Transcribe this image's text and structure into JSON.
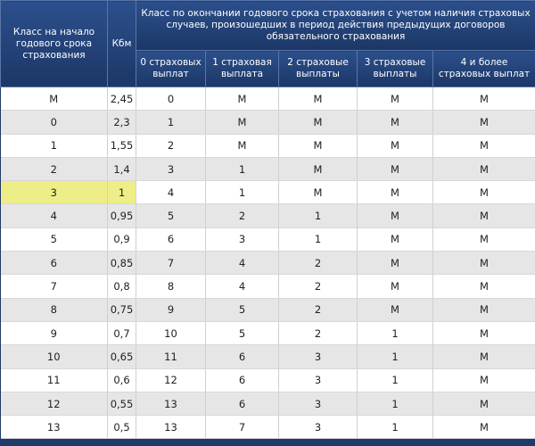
{
  "header": {
    "class_start": "Класс на начало годового срока страхования",
    "kbm": "Кбм",
    "class_end": "Класс по окончании годового срока страхования с учетом наличия страховых случаев, произошедших в период действия предыдущих договоров обязательного страхования",
    "columns": [
      "0 страховых выплат",
      "1 страховая выплата",
      "2 страховые выплаты",
      "3 страховые выплаты",
      "4 и более страховых выплат"
    ]
  },
  "table": {
    "rows": [
      [
        "M",
        "2,45",
        "0",
        "M",
        "M",
        "M",
        "M"
      ],
      [
        "0",
        "2,3",
        "1",
        "M",
        "M",
        "M",
        "M"
      ],
      [
        "1",
        "1,55",
        "2",
        "M",
        "M",
        "M",
        "M"
      ],
      [
        "2",
        "1,4",
        "3",
        "1",
        "M",
        "M",
        "M"
      ],
      [
        "3",
        "1",
        "4",
        "1",
        "M",
        "M",
        "M"
      ],
      [
        "4",
        "0,95",
        "5",
        "2",
        "1",
        "M",
        "M"
      ],
      [
        "5",
        "0,9",
        "6",
        "3",
        "1",
        "M",
        "M"
      ],
      [
        "6",
        "0,85",
        "7",
        "4",
        "2",
        "M",
        "M"
      ],
      [
        "7",
        "0,8",
        "8",
        "4",
        "2",
        "M",
        "M"
      ],
      [
        "8",
        "0,75",
        "9",
        "5",
        "2",
        "M",
        "M"
      ],
      [
        "9",
        "0,7",
        "10",
        "5",
        "2",
        "1",
        "M"
      ],
      [
        "10",
        "0,65",
        "11",
        "6",
        "3",
        "1",
        "M"
      ],
      [
        "11",
        "0,6",
        "12",
        "6",
        "3",
        "1",
        "M"
      ],
      [
        "12",
        "0,55",
        "13",
        "6",
        "3",
        "1",
        "M"
      ],
      [
        "13",
        "0,5",
        "13",
        "7",
        "3",
        "1",
        "M"
      ]
    ]
  }
}
